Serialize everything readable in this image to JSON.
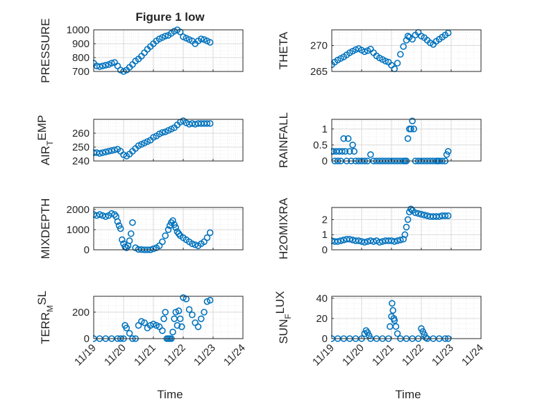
{
  "figure": {
    "title": "Figure 1 low",
    "xlabel": "Time",
    "colors": {
      "marker": "#0072BD",
      "axis": "#262626",
      "grid": "#d9d9d9",
      "minor_grid": "#ebebeb"
    }
  },
  "chart_data": [
    {
      "type": "scatter",
      "id": "pressure",
      "ylabel": "PRESSURE",
      "ylim": [
        700,
        1000
      ],
      "yticks": [
        700,
        800,
        900,
        1000
      ],
      "x_ticks": [
        "11/19",
        "11/20",
        "11/21",
        "11/22",
        "11/23",
        "11/24"
      ],
      "x": [
        19.0,
        19.1,
        19.2,
        19.3,
        19.4,
        19.5,
        19.6,
        19.7,
        19.8,
        19.9,
        20.0,
        20.1,
        20.2,
        20.3,
        20.4,
        20.5,
        20.6,
        20.7,
        20.8,
        20.9,
        21.0,
        21.1,
        21.2,
        21.3,
        21.4,
        21.5,
        21.6,
        21.7,
        21.8,
        21.9,
        22.0,
        22.1,
        22.2,
        22.3,
        22.4,
        22.5,
        22.6,
        22.7,
        22.8,
        22.9
      ],
      "y": [
        760,
        740,
        735,
        740,
        745,
        750,
        760,
        765,
        740,
        710,
        700,
        710,
        730,
        750,
        775,
        790,
        810,
        835,
        860,
        880,
        900,
        920,
        935,
        945,
        955,
        960,
        975,
        990,
        1000,
        985,
        950,
        940,
        930,
        920,
        900,
        920,
        935,
        930,
        920,
        910
      ]
    },
    {
      "type": "scatter",
      "id": "theta",
      "ylabel": "THETA",
      "ylim": [
        265,
        273
      ],
      "yticks": [
        265,
        270
      ],
      "x_ticks": [
        "11/19",
        "11/20",
        "11/21",
        "11/22",
        "11/23",
        "11/24"
      ],
      "x": [
        19.0,
        19.1,
        19.2,
        19.3,
        19.4,
        19.5,
        19.6,
        19.7,
        19.8,
        19.9,
        20.0,
        20.1,
        20.2,
        20.3,
        20.4,
        20.5,
        20.6,
        20.7,
        20.8,
        20.9,
        21.0,
        21.1,
        21.2,
        21.3,
        21.4,
        21.5,
        21.55,
        21.6,
        21.7,
        21.8,
        21.9,
        22.0,
        22.1,
        22.2,
        22.3,
        22.4,
        22.5,
        22.6,
        22.7,
        22.8,
        22.9
      ],
      "y": [
        266.3,
        266.8,
        267.2,
        267.5,
        267.8,
        268.2,
        268.6,
        268.9,
        269.2,
        269.4,
        269.1,
        268.8,
        269.0,
        269.3,
        268.6,
        268.0,
        267.6,
        267.3,
        267.0,
        266.8,
        266.2,
        265.5,
        266.6,
        268.3,
        269.8,
        271.0,
        271.8,
        271.6,
        271.2,
        272.0,
        272.5,
        271.8,
        271.5,
        271.0,
        270.5,
        270.2,
        270.8,
        271.2,
        271.6,
        272.0,
        272.4
      ]
    },
    {
      "type": "scatter",
      "id": "air_temp",
      "ylabel": "AIR_TEMP",
      "ylim": [
        240,
        270
      ],
      "yticks": [
        240,
        250,
        260
      ],
      "x_ticks": [
        "11/19",
        "11/20",
        "11/21",
        "11/22",
        "11/23",
        "11/24"
      ],
      "x": [
        19.0,
        19.1,
        19.2,
        19.3,
        19.4,
        19.5,
        19.6,
        19.7,
        19.8,
        19.9,
        20.0,
        20.1,
        20.2,
        20.3,
        20.4,
        20.5,
        20.6,
        20.7,
        20.8,
        20.9,
        21.0,
        21.1,
        21.2,
        21.3,
        21.4,
        21.5,
        21.6,
        21.7,
        21.8,
        21.9,
        22.0,
        22.1,
        22.2,
        22.3,
        22.4,
        22.5,
        22.6,
        22.7,
        22.8,
        22.9
      ],
      "y": [
        246,
        246,
        245.5,
        246,
        246.5,
        247,
        247.5,
        248,
        248.5,
        247,
        244.5,
        243.5,
        245,
        247,
        249,
        251,
        252,
        253,
        254,
        255,
        257,
        258,
        259.5,
        260.5,
        261,
        262,
        263,
        264,
        266,
        268,
        269,
        267.5,
        266.5,
        267,
        266.5,
        267,
        267,
        267,
        267,
        267
      ]
    },
    {
      "type": "scatter",
      "id": "rainfall",
      "ylabel": "RAINFALL",
      "ylim": [
        0,
        1.3
      ],
      "yticks": [
        0,
        0.5,
        1
      ],
      "x_ticks": [
        "11/19",
        "11/20",
        "11/21",
        "11/22",
        "11/23",
        "11/24"
      ],
      "x": [
        19.0,
        19.05,
        19.1,
        19.15,
        19.2,
        19.25,
        19.3,
        19.35,
        19.4,
        19.45,
        19.5,
        19.55,
        19.6,
        19.65,
        19.7,
        19.75,
        19.8,
        19.9,
        20.0,
        20.1,
        20.2,
        20.3,
        20.4,
        20.5,
        20.6,
        20.7,
        20.8,
        20.9,
        21.0,
        21.1,
        21.2,
        21.3,
        21.4,
        21.45,
        21.5,
        21.55,
        21.6,
        21.65,
        21.7,
        21.75,
        21.8,
        21.9,
        22.0,
        22.1,
        22.2,
        22.3,
        22.4,
        22.5,
        22.55,
        22.6,
        22.7,
        22.8,
        22.85,
        22.9
      ],
      "y": [
        0.3,
        0.3,
        0.0,
        0.3,
        0.0,
        0.3,
        0.0,
        0.3,
        0.7,
        0.3,
        0.0,
        0.7,
        0.3,
        0.0,
        0.5,
        0.3,
        0.0,
        0.0,
        0.0,
        0.0,
        0.0,
        0.2,
        0.0,
        0.0,
        0.0,
        0.0,
        0.0,
        0.0,
        0.0,
        0.0,
        0.0,
        0.0,
        0.0,
        0.0,
        0.0,
        0.7,
        1.0,
        1.0,
        1.25,
        1.0,
        0.0,
        0.0,
        0.0,
        0.0,
        0.0,
        0.0,
        0.0,
        0.0,
        0.0,
        0.0,
        0.0,
        0.0,
        0.2,
        0.3
      ]
    },
    {
      "type": "scatter",
      "id": "mixdepth",
      "ylabel": "MIXDEPTH",
      "ylim": [
        0,
        2100
      ],
      "yticks": [
        0,
        1000,
        2000
      ],
      "x_ticks": [
        "11/19",
        "11/20",
        "11/21",
        "11/22",
        "11/23",
        "11/24"
      ],
      "x": [
        19.0,
        19.1,
        19.2,
        19.3,
        19.4,
        19.5,
        19.6,
        19.7,
        19.75,
        19.8,
        19.85,
        19.9,
        19.95,
        20.0,
        20.05,
        20.1,
        20.15,
        20.2,
        20.25,
        20.3,
        20.4,
        20.5,
        20.6,
        20.7,
        20.8,
        20.9,
        21.0,
        21.1,
        21.2,
        21.3,
        21.4,
        21.5,
        21.55,
        21.6,
        21.65,
        21.7,
        21.75,
        21.8,
        21.85,
        21.9,
        22.0,
        22.1,
        22.2,
        22.3,
        22.4,
        22.5,
        22.6,
        22.7,
        22.8,
        22.9
      ],
      "y": [
        1750,
        1700,
        1750,
        1700,
        1650,
        1700,
        1800,
        1750,
        1650,
        1400,
        1200,
        1050,
        500,
        300,
        150,
        100,
        200,
        450,
        800,
        1350,
        100,
        20,
        10,
        0,
        0,
        0,
        50,
        100,
        200,
        400,
        700,
        1000,
        1200,
        1350,
        1450,
        1250,
        1100,
        900,
        800,
        700,
        600,
        500,
        400,
        300,
        250,
        200,
        300,
        400,
        600,
        850
      ]
    },
    {
      "type": "scatter",
      "id": "h2omixra",
      "ylabel": "H2OMIXRA",
      "ylim": [
        0,
        2.8
      ],
      "yticks": [
        0,
        1,
        2
      ],
      "x_ticks": [
        "11/19",
        "11/20",
        "11/21",
        "11/22",
        "11/23",
        "11/24"
      ],
      "x": [
        19.0,
        19.1,
        19.2,
        19.3,
        19.4,
        19.5,
        19.6,
        19.7,
        19.8,
        19.9,
        20.0,
        20.1,
        20.2,
        20.3,
        20.4,
        20.5,
        20.6,
        20.7,
        20.8,
        20.9,
        21.0,
        21.1,
        21.2,
        21.3,
        21.4,
        21.45,
        21.5,
        21.55,
        21.6,
        21.65,
        21.7,
        21.8,
        21.9,
        22.0,
        22.1,
        22.2,
        22.3,
        22.4,
        22.5,
        22.6,
        22.7,
        22.8,
        22.9
      ],
      "y": [
        0.6,
        0.55,
        0.55,
        0.6,
        0.65,
        0.7,
        0.7,
        0.65,
        0.6,
        0.6,
        0.55,
        0.5,
        0.55,
        0.6,
        0.55,
        0.6,
        0.5,
        0.55,
        0.6,
        0.6,
        0.6,
        0.55,
        0.6,
        0.65,
        0.7,
        1.0,
        1.5,
        2.0,
        2.5,
        2.7,
        2.6,
        2.45,
        2.4,
        2.35,
        2.3,
        2.25,
        2.2,
        2.2,
        2.2,
        2.2,
        2.25,
        2.25,
        2.25
      ]
    },
    {
      "type": "scatter",
      "id": "terr_msl",
      "ylabel": "TERR_MSL",
      "ylim": [
        0,
        320
      ],
      "yticks": [
        0,
        200
      ],
      "x_ticks": [
        "11/19",
        "11/20",
        "11/21",
        "11/22",
        "11/23",
        "11/24"
      ],
      "x": [
        19.0,
        19.2,
        19.4,
        19.6,
        19.8,
        19.9,
        20.0,
        20.05,
        20.1,
        20.2,
        20.3,
        20.4,
        20.5,
        20.6,
        20.7,
        20.8,
        20.9,
        21.0,
        21.1,
        21.2,
        21.3,
        21.35,
        21.4,
        21.45,
        21.5,
        21.55,
        21.6,
        21.65,
        21.7,
        21.75,
        21.8,
        21.85,
        21.9,
        21.95,
        22.0,
        22.1,
        22.2,
        22.3,
        22.4,
        22.5,
        22.6,
        22.7,
        22.8,
        22.9
      ],
      "y": [
        0,
        0,
        0,
        0,
        0,
        0,
        0,
        100,
        80,
        40,
        0,
        0,
        100,
        130,
        120,
        80,
        100,
        110,
        100,
        90,
        60,
        150,
        200,
        0,
        0,
        0,
        0,
        50,
        150,
        200,
        100,
        210,
        150,
        90,
        310,
        300,
        220,
        180,
        120,
        90,
        150,
        200,
        280,
        290
      ]
    },
    {
      "type": "scatter",
      "id": "sun_flux",
      "ylabel": "SUN_FLUX",
      "ylim": [
        0,
        42
      ],
      "yticks": [
        0,
        20,
        40
      ],
      "x_ticks": [
        "11/19",
        "11/20",
        "11/21",
        "11/22",
        "11/23",
        "11/24"
      ],
      "x": [
        19.0,
        19.2,
        19.4,
        19.6,
        19.8,
        20.0,
        20.1,
        20.15,
        20.2,
        20.25,
        20.3,
        20.5,
        20.7,
        20.9,
        20.95,
        21.0,
        21.02,
        21.05,
        21.08,
        21.1,
        21.15,
        21.2,
        21.3,
        21.5,
        21.7,
        21.9,
        22.0,
        22.05,
        22.1,
        22.15,
        22.2,
        22.4,
        22.6,
        22.8,
        22.9
      ],
      "y": [
        0,
        0,
        0,
        0,
        0,
        0,
        5,
        8,
        6,
        3,
        0,
        0,
        0,
        0,
        12,
        22,
        35,
        28,
        20,
        18,
        12,
        5,
        0,
        0,
        0,
        0,
        10,
        7,
        4,
        1,
        0,
        0,
        0,
        0,
        0
      ]
    }
  ]
}
